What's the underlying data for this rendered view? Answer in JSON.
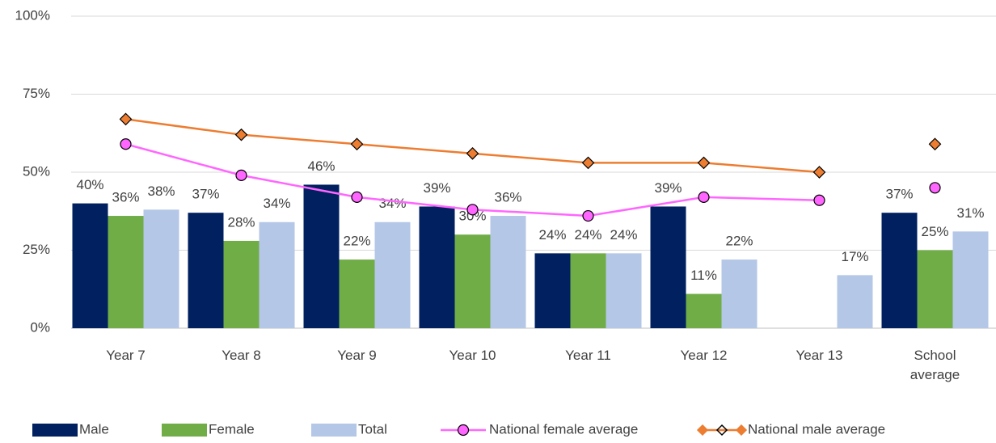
{
  "chart_data": {
    "type": "bar",
    "categories": [
      "Year 7",
      "Year 8",
      "Year 9",
      "Year 10",
      "Year 11",
      "Year 12",
      "Year 13",
      "School average"
    ],
    "series": [
      {
        "name": "Male",
        "type": "bar",
        "color": "#002060",
        "values": [
          40,
          37,
          46,
          39,
          24,
          39,
          null,
          37
        ],
        "value_labels": [
          "40%",
          "37%",
          "46%",
          "39%",
          "24%",
          "39%",
          null,
          "37%"
        ]
      },
      {
        "name": "Female",
        "type": "bar",
        "color": "#70ad47",
        "values": [
          36,
          28,
          22,
          30,
          24,
          11,
          null,
          25
        ],
        "value_labels": [
          "36%",
          "28%",
          "22%",
          "30%",
          "24%",
          "11%",
          null,
          "25%"
        ]
      },
      {
        "name": "Total",
        "type": "bar",
        "color": "#b4c7e7",
        "values": [
          38,
          34,
          34,
          36,
          24,
          22,
          17,
          31
        ],
        "value_labels": [
          "38%",
          "34%",
          "34%",
          "36%",
          "24%",
          "22%",
          "17%",
          "31%"
        ]
      },
      {
        "name": "National female average",
        "type": "line",
        "marker": "circle",
        "color": "#ff66ff",
        "marker_color": "#ff66ff",
        "values": [
          59,
          49,
          42,
          38,
          36,
          42,
          41,
          45
        ]
      },
      {
        "name": "National male average",
        "type": "line",
        "marker": "diamond",
        "color": "#ed7d31",
        "marker_color": "#ed7d31",
        "values": [
          67,
          62,
          59,
          56,
          53,
          53,
          50,
          59
        ]
      }
    ],
    "line_to_last_category": false,
    "ylim": [
      0,
      100
    ],
    "yticks": [
      {
        "value": 0,
        "label": "0%"
      },
      {
        "value": 25,
        "label": "25%"
      },
      {
        "value": 50,
        "label": "50%"
      },
      {
        "value": 75,
        "label": "75%"
      },
      {
        "value": 100,
        "label": "100%"
      }
    ],
    "grid": true,
    "legend": "bottom"
  }
}
